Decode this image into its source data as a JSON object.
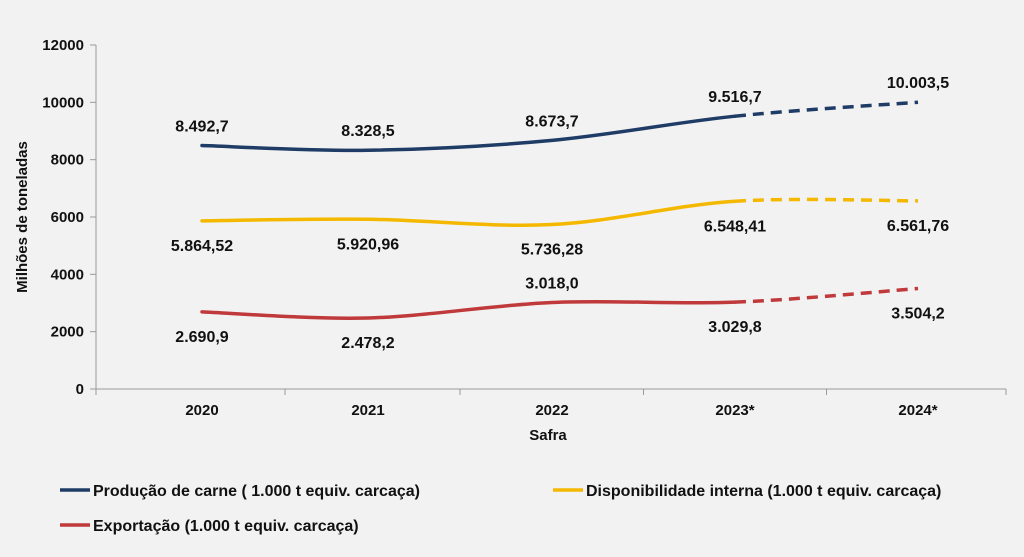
{
  "chart_data": {
    "type": "line",
    "xlabel": "Safra",
    "ylabel": "Milhões de toneladas",
    "ylim": [
      0,
      12000
    ],
    "yticks": [
      "0",
      "2000",
      "4000",
      "6000",
      "8000",
      "10000",
      "12000"
    ],
    "categories": [
      "2020",
      "2021",
      "2022",
      "2023*",
      "2024*"
    ],
    "projected_from_index": 3,
    "grid": false,
    "legend_position": "bottom",
    "series": [
      {
        "name": "Produção de carne ( 1.000 t equiv. carcaça)",
        "color": "#1f3c66",
        "values": [
          8492.7,
          8328.5,
          8673.7,
          9516.7,
          10003.5
        ],
        "labels": [
          "8.492,7",
          "8.328,5",
          "8.673,7",
          "9.516,7",
          "10.003,5"
        ],
        "label_position": [
          "above",
          "above",
          "above",
          "above",
          "above"
        ]
      },
      {
        "name": "Disponibilidade interna (1.000 t equiv. carcaça)",
        "color": "#f5b800",
        "values": [
          5864.52,
          5920.96,
          5736.28,
          6548.41,
          6561.76
        ],
        "labels": [
          "5.864,52",
          "5.920,96",
          "5.736,28",
          "6.548,41",
          "6.561,76"
        ],
        "label_position": [
          "below",
          "below",
          "below",
          "below",
          "below"
        ]
      },
      {
        "name": "Exportação (1.000 t equiv. carcaça)",
        "color": "#c0393b",
        "values": [
          2690.9,
          2478.2,
          3018.0,
          3029.8,
          3504.2
        ],
        "labels": [
          "2.690,9",
          "2.478,2",
          "3.018,0",
          "3.029,8",
          "3.504,2"
        ],
        "label_position": [
          "below",
          "below",
          "above",
          "below",
          "below"
        ]
      }
    ]
  }
}
